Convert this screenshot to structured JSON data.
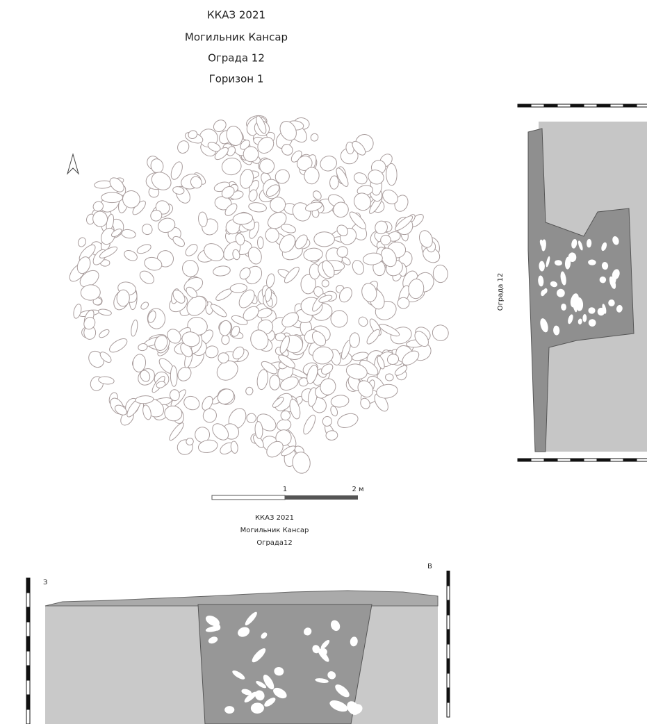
{
  "plan": {
    "title_lines": [
      "ККАЗ 2021",
      "Могильник Кансар",
      "Ограда 12",
      "Горизон 1"
    ],
    "scale_labels": [
      "1",
      "2 м"
    ]
  },
  "section_caption": [
    "ККАЗ 2021",
    "Могильник Кансар",
    "Ограда12"
  ],
  "cross_section": {
    "left_label": "З",
    "right_label": "В"
  },
  "side_section": {
    "label": "Ограда 12"
  }
}
